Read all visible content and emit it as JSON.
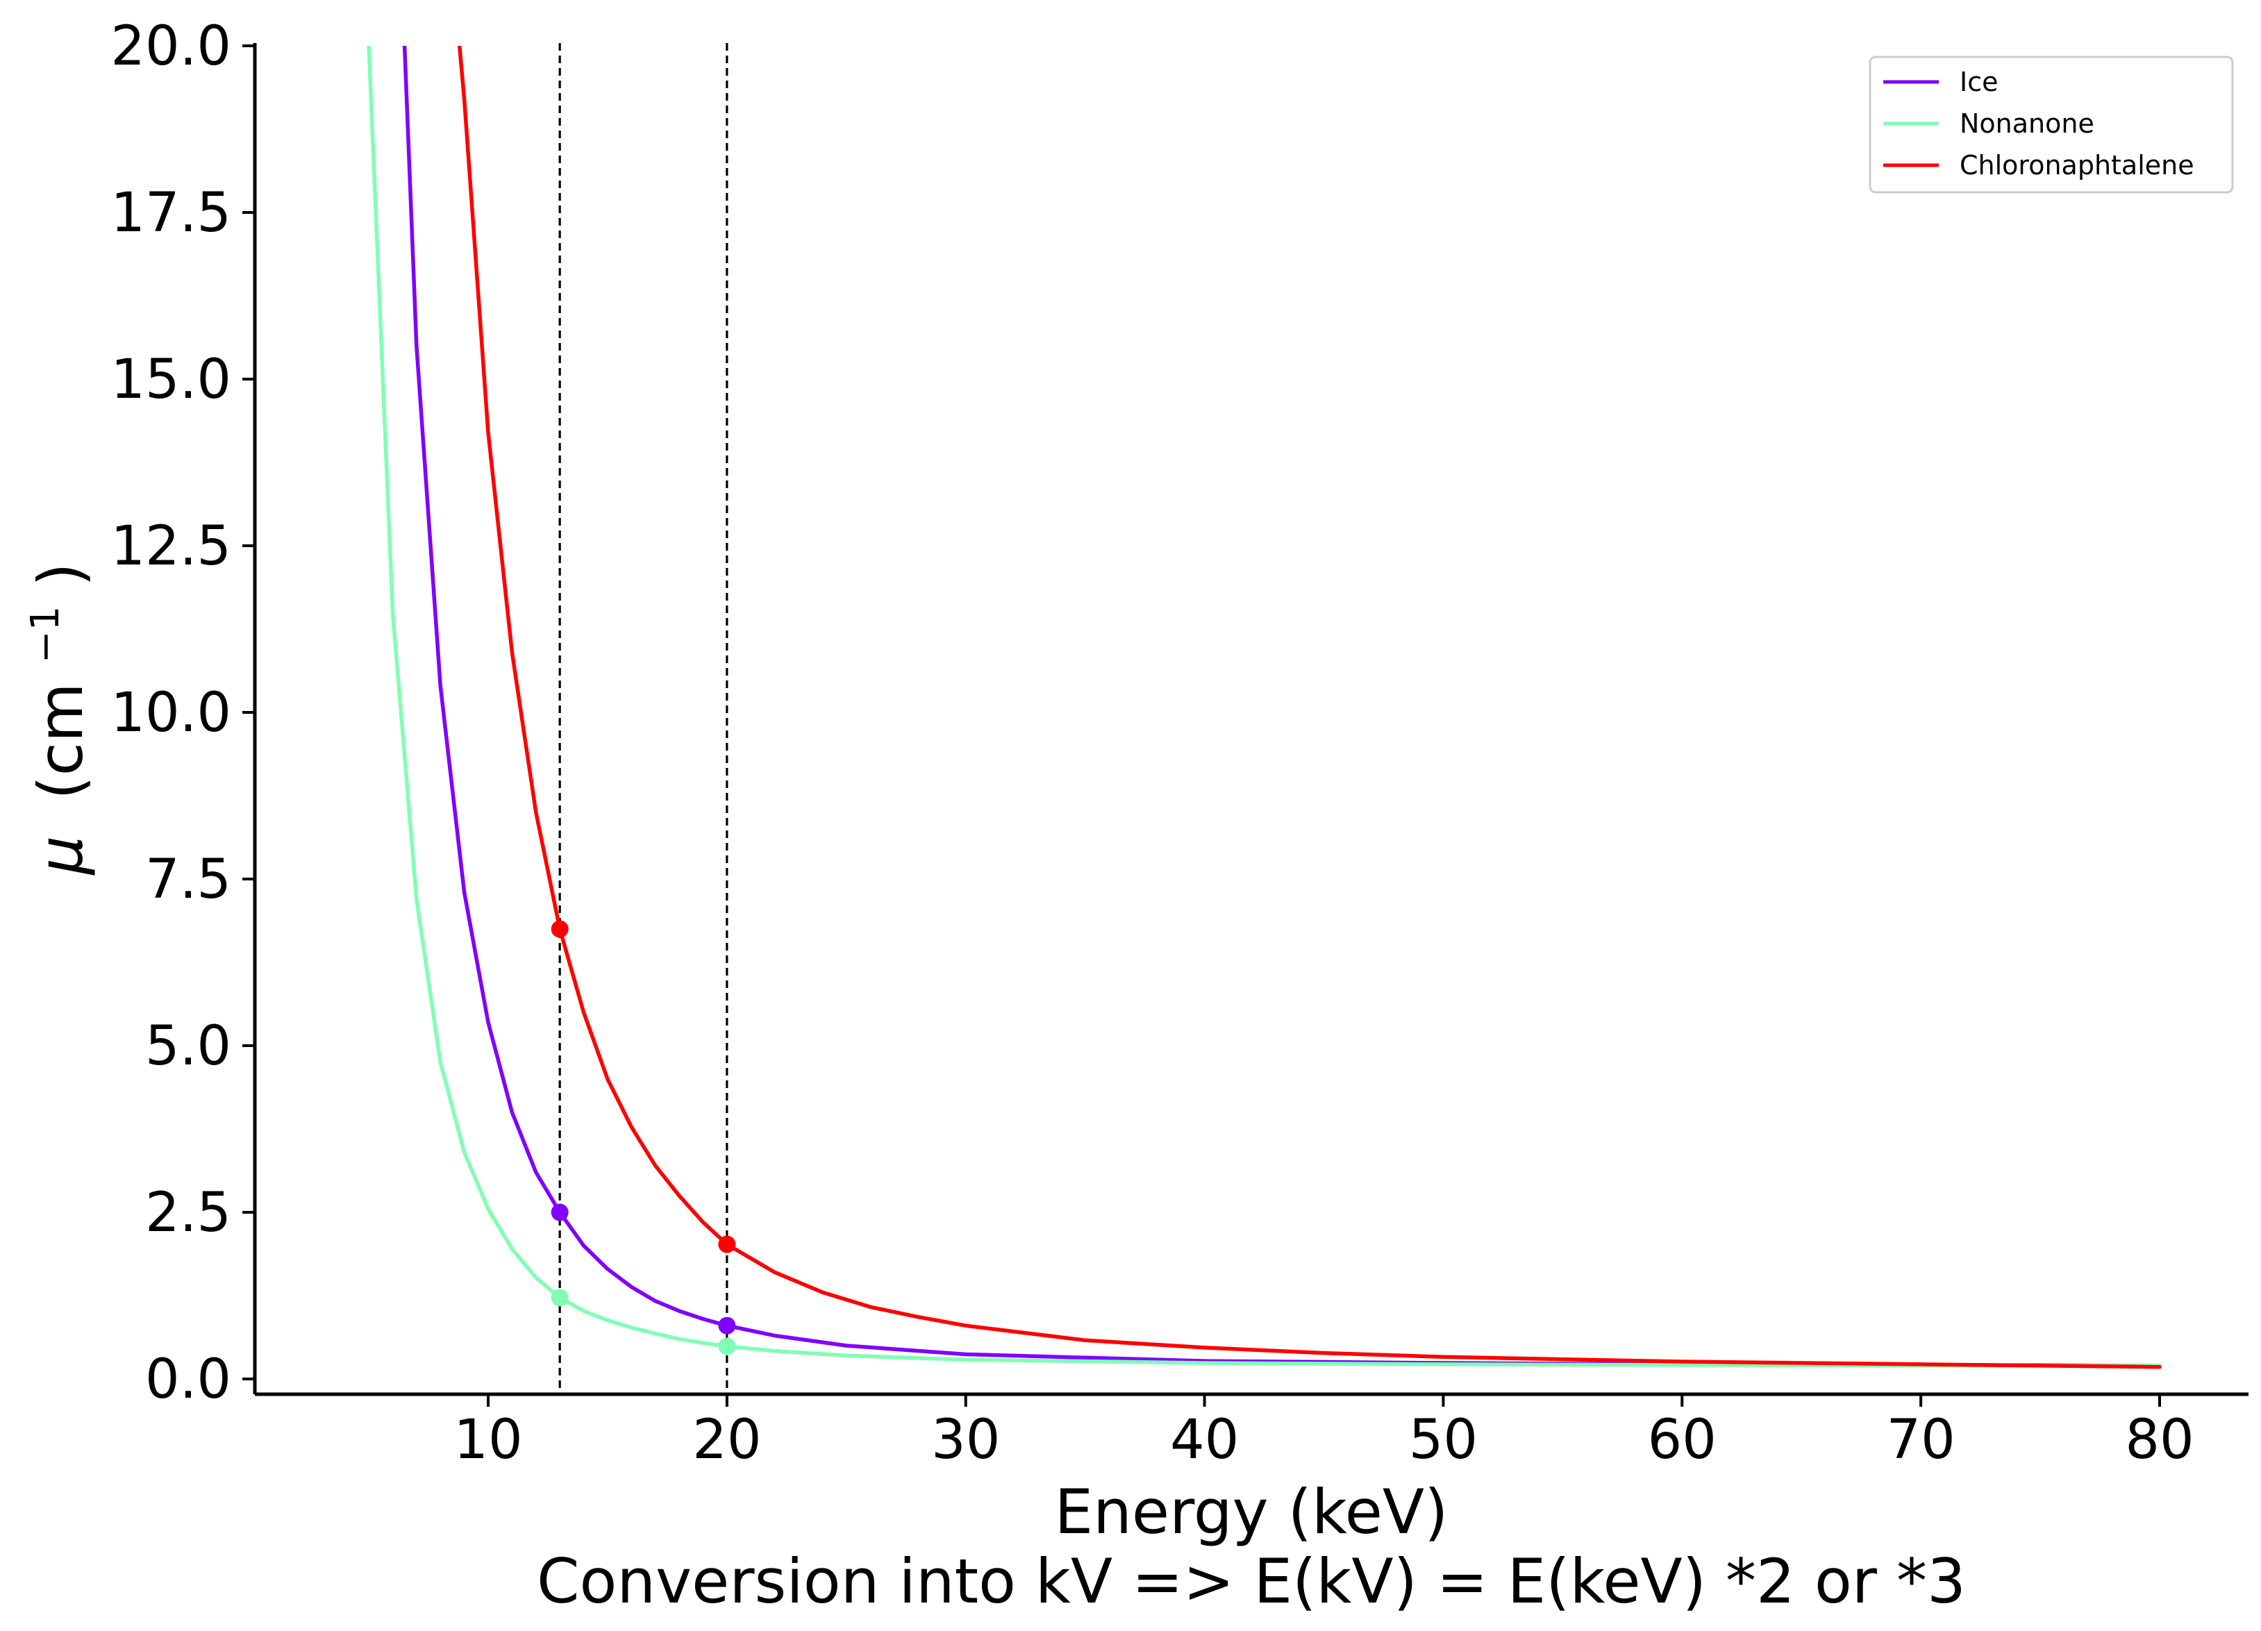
{
  "chart_data": {
    "type": "line",
    "title": "",
    "xlabel": "Energy (keV)",
    "xlabel_line2": "Conversion into kV => E(kV) = E(keV) *2 or *3",
    "ylabel_symbol": "μ",
    "ylabel_unit_base": "(cm",
    "ylabel_unit_exp": "−1",
    "ylabel_unit_close": ")",
    "xlim": [
      0,
      83.5
    ],
    "ylim": [
      -0.5,
      20
    ],
    "xticks": [
      10,
      20,
      30,
      40,
      50,
      60,
      70,
      80
    ],
    "xtick_labels": [
      "10",
      "20",
      "30",
      "40",
      "50",
      "60",
      "70",
      "80"
    ],
    "yticks": [
      0,
      2.5,
      5,
      7.5,
      10,
      12.5,
      15,
      17.5,
      20
    ],
    "ytick_labels": [
      "0.0",
      "2.5",
      "5.0",
      "7.5",
      "10.0",
      "12.5",
      "15.0",
      "17.5",
      "20.0"
    ],
    "legend_position": "top-right",
    "vlines": [
      13,
      20
    ],
    "series": [
      {
        "name": "Ice",
        "color": "#7f00ff",
        "x": [
          6.5,
          7,
          8,
          9,
          10,
          11,
          12,
          13,
          14,
          15,
          16,
          17,
          18,
          19,
          20,
          22,
          25,
          30,
          40,
          50,
          60,
          70,
          80
        ],
        "values": [
          20,
          15.5,
          10.4,
          7.3,
          5.35,
          4.0,
          3.1,
          2.5,
          2.0,
          1.65,
          1.38,
          1.17,
          1.02,
          0.9,
          0.8,
          0.65,
          0.5,
          0.37,
          0.27,
          0.24,
          0.22,
          0.21,
          0.2
        ]
      },
      {
        "name": "Nonanone",
        "color": "#80ffb4",
        "x": [
          5,
          6,
          7,
          8,
          9,
          10,
          11,
          12,
          13,
          14,
          15,
          16,
          17,
          18,
          19,
          20,
          22,
          25,
          30,
          40,
          50,
          60,
          70,
          80
        ],
        "values": [
          20,
          11.5,
          7.2,
          4.75,
          3.4,
          2.55,
          1.95,
          1.52,
          1.22,
          1.02,
          0.88,
          0.77,
          0.68,
          0.6,
          0.54,
          0.49,
          0.42,
          0.35,
          0.29,
          0.24,
          0.22,
          0.21,
          0.2,
          0.2
        ]
      },
      {
        "name": "Chloronaphtalene",
        "color": "#ff0000",
        "x": [
          8.8,
          9,
          10,
          11,
          12,
          13,
          14,
          15,
          16,
          17,
          18,
          19,
          20,
          22,
          24,
          26,
          28,
          30,
          35,
          40,
          45,
          50,
          60,
          70,
          80
        ],
        "values": [
          20,
          19.2,
          14.2,
          10.9,
          8.5,
          6.75,
          5.5,
          4.5,
          3.78,
          3.2,
          2.75,
          2.35,
          2.02,
          1.6,
          1.3,
          1.08,
          0.93,
          0.8,
          0.58,
          0.47,
          0.39,
          0.33,
          0.26,
          0.22,
          0.18
        ]
      }
    ],
    "markers": [
      {
        "series": "Ice",
        "x": 13,
        "y": 2.5
      },
      {
        "series": "Ice",
        "x": 20,
        "y": 0.8
      },
      {
        "series": "Nonanone",
        "x": 13,
        "y": 1.22
      },
      {
        "series": "Nonanone",
        "x": 20,
        "y": 0.49
      },
      {
        "series": "Chloronaphtalene",
        "x": 13,
        "y": 6.75
      },
      {
        "series": "Chloronaphtalene",
        "x": 20,
        "y": 2.02
      }
    ]
  }
}
